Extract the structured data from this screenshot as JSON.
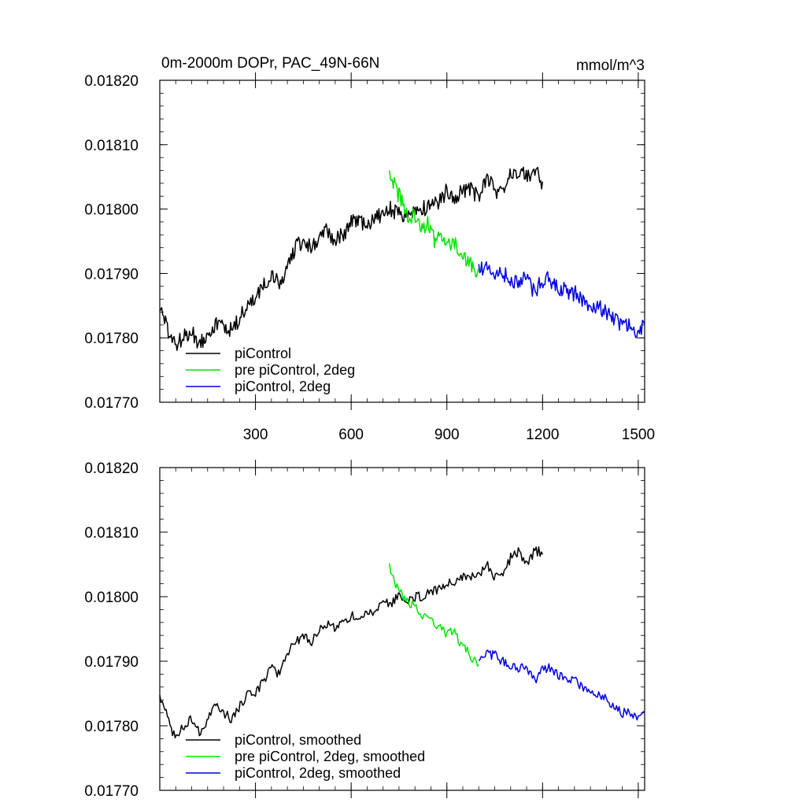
{
  "chart_data": [
    {
      "type": "line",
      "title": "0m-2000m DOPr, PAC_49N-66N",
      "units": "mmol/m^3",
      "xlim": [
        0,
        1520
      ],
      "ylim": [
        0.0177,
        0.0182
      ],
      "x_ticks": [
        300,
        600,
        900,
        1200,
        1500
      ],
      "x_tick_labels": [
        "300",
        "600",
        "900",
        "1200",
        "1500"
      ],
      "y_ticks": [
        0.0177,
        0.0178,
        0.0179,
        0.018,
        0.0181,
        0.0182
      ],
      "y_tick_labels": [
        "0.01770",
        "0.01780",
        "0.01790",
        "0.01800",
        "0.01810",
        "0.01820"
      ],
      "legend_position": "bottom-left",
      "series": [
        {
          "name": "piControl",
          "color": "#000000",
          "x": [
            0,
            25,
            50,
            75,
            100,
            125,
            150,
            175,
            200,
            225,
            250,
            275,
            300,
            325,
            350,
            375,
            400,
            425,
            450,
            475,
            500,
            525,
            550,
            575,
            600,
            625,
            650,
            675,
            700,
            725,
            750,
            775,
            800,
            825,
            850,
            875,
            900,
            925,
            950,
            975,
            1000,
            1025,
            1050,
            1075,
            1100,
            1125,
            1150,
            1175,
            1200
          ],
          "values": [
            0.01785,
            0.01781,
            0.01779,
            0.0178,
            0.01781,
            0.01779,
            0.01781,
            0.01782,
            0.01782,
            0.01781,
            0.01783,
            0.01785,
            0.01786,
            0.01788,
            0.0179,
            0.01788,
            0.01791,
            0.01794,
            0.01795,
            0.01794,
            0.01795,
            0.01797,
            0.01795,
            0.01796,
            0.01798,
            0.01798,
            0.01797,
            0.01799,
            0.01799,
            0.018,
            0.01799,
            0.01799,
            0.018,
            0.018,
            0.01801,
            0.01801,
            0.01803,
            0.01802,
            0.01803,
            0.01803,
            0.01802,
            0.01805,
            0.01803,
            0.01802,
            0.01806,
            0.01806,
            0.01805,
            0.01806,
            0.01804
          ]
        },
        {
          "name": "pre piControl, 2deg",
          "color": "#00e600",
          "x": [
            720,
            740,
            760,
            780,
            800,
            820,
            840,
            860,
            880,
            900,
            920,
            940,
            960,
            980,
            1000
          ],
          "values": [
            0.01806,
            0.01803,
            0.01801,
            0.01799,
            0.01799,
            0.01797,
            0.01798,
            0.01795,
            0.01796,
            0.01794,
            0.01795,
            0.01793,
            0.01792,
            0.01791,
            0.0179
          ]
        },
        {
          "name": "piControl, 2deg",
          "color": "#0000e6",
          "x": [
            1000,
            1025,
            1050,
            1075,
            1100,
            1125,
            1150,
            1175,
            1200,
            1225,
            1250,
            1275,
            1300,
            1325,
            1350,
            1375,
            1400,
            1425,
            1450,
            1475,
            1500,
            1520
          ],
          "values": [
            0.01791,
            0.01791,
            0.0179,
            0.0179,
            0.01789,
            0.01789,
            0.01789,
            0.01787,
            0.01789,
            0.01789,
            0.01788,
            0.01787,
            0.01787,
            0.01786,
            0.01785,
            0.01785,
            0.01784,
            0.01783,
            0.01782,
            0.01782,
            0.01781,
            0.01782
          ]
        }
      ]
    },
    {
      "type": "line",
      "title": "",
      "units": "",
      "xlim": [
        0,
        1520
      ],
      "ylim": [
        0.0177,
        0.0182
      ],
      "x_ticks": [
        300,
        600,
        900,
        1200,
        1500
      ],
      "x_tick_labels": [],
      "y_ticks": [
        0.0177,
        0.0178,
        0.0179,
        0.018,
        0.0181,
        0.0182
      ],
      "y_tick_labels": [
        "0.01770",
        "0.01780",
        "0.01790",
        "0.01800",
        "0.01810",
        "0.01820"
      ],
      "legend_position": "bottom-left",
      "series": [
        {
          "name": "piControl, smoothed",
          "color": "#000000",
          "x": [
            0,
            25,
            50,
            75,
            100,
            125,
            150,
            175,
            200,
            225,
            250,
            275,
            300,
            325,
            350,
            375,
            400,
            425,
            450,
            475,
            500,
            525,
            550,
            575,
            600,
            625,
            650,
            675,
            700,
            725,
            750,
            775,
            800,
            825,
            850,
            875,
            900,
            925,
            950,
            975,
            1000,
            1025,
            1050,
            1075,
            1100,
            1125,
            1150,
            1175,
            1200
          ],
          "values": [
            0.01785,
            0.01781,
            0.01778,
            0.0178,
            0.01781,
            0.01779,
            0.01781,
            0.01783,
            0.01782,
            0.01781,
            0.01783,
            0.01785,
            0.01785,
            0.01787,
            0.01789,
            0.01788,
            0.01791,
            0.01793,
            0.01794,
            0.01793,
            0.01795,
            0.01796,
            0.01795,
            0.01796,
            0.01797,
            0.01797,
            0.01797,
            0.01798,
            0.01799,
            0.01799,
            0.018,
            0.01799,
            0.018,
            0.018,
            0.01801,
            0.01801,
            0.01802,
            0.01802,
            0.01803,
            0.01803,
            0.01803,
            0.01805,
            0.01803,
            0.01803,
            0.01806,
            0.01807,
            0.01805,
            0.01807,
            0.01807
          ]
        },
        {
          "name": "pre piControl, 2deg, smoothed",
          "color": "#00e600",
          "x": [
            720,
            740,
            760,
            780,
            800,
            820,
            840,
            860,
            880,
            900,
            920,
            940,
            960,
            980,
            1000
          ],
          "values": [
            0.01805,
            0.01802,
            0.018,
            0.01799,
            0.01799,
            0.01797,
            0.01797,
            0.01796,
            0.01795,
            0.01794,
            0.01795,
            0.01793,
            0.01792,
            0.0179,
            0.0179
          ]
        },
        {
          "name": "piControl, 2deg, smoothed",
          "color": "#0000e6",
          "x": [
            1000,
            1025,
            1050,
            1075,
            1100,
            1125,
            1150,
            1175,
            1200,
            1225,
            1250,
            1275,
            1300,
            1325,
            1350,
            1375,
            1400,
            1425,
            1450,
            1475,
            1500,
            1520
          ],
          "values": [
            0.0179,
            0.01791,
            0.01791,
            0.0179,
            0.01789,
            0.01789,
            0.01789,
            0.01787,
            0.01789,
            0.01789,
            0.01788,
            0.01787,
            0.01787,
            0.01786,
            0.01785,
            0.01785,
            0.01784,
            0.01783,
            0.01782,
            0.01782,
            0.01781,
            0.01782
          ]
        }
      ]
    }
  ]
}
